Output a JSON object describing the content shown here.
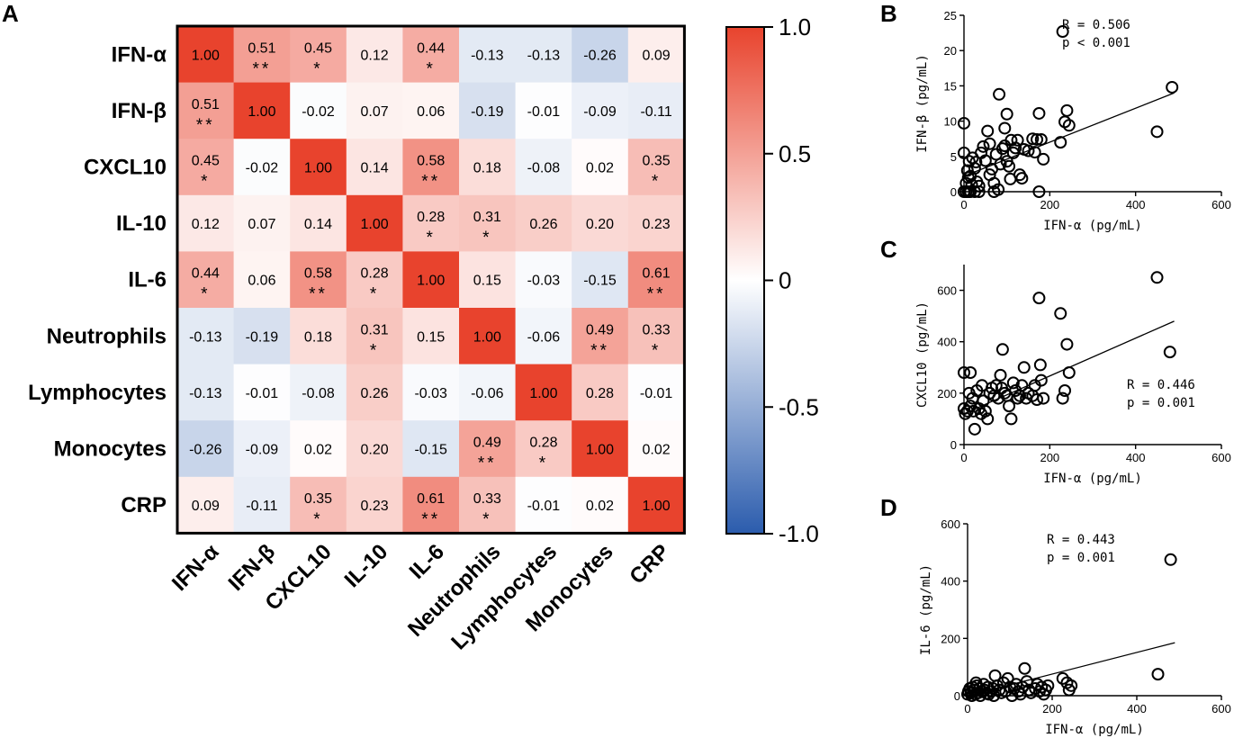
{
  "panels": {
    "a": "A",
    "b": "B",
    "c": "C",
    "d": "D"
  },
  "colorbar": {
    "ticks": [
      "1.0",
      "0.5",
      "0",
      "-0.5",
      "-1.0"
    ],
    "tick_values": [
      1.0,
      0.5,
      0,
      -0.5,
      -1.0
    ],
    "color_pos": "#e8432d",
    "color_neg": "#2b5cad",
    "color_mid": "#ffffff"
  },
  "chart_data": [
    {
      "type": "heatmap",
      "title": "",
      "labels": [
        "IFN-α",
        "IFN-β",
        "CXCL10",
        "IL-10",
        "IL-6",
        "Neutrophils",
        "Lymphocytes",
        "Monocytes",
        "CRP"
      ],
      "values": [
        [
          1.0,
          0.51,
          0.45,
          0.12,
          0.44,
          -0.13,
          -0.13,
          -0.26,
          0.09
        ],
        [
          0.51,
          1.0,
          -0.02,
          0.07,
          0.06,
          -0.19,
          -0.01,
          -0.09,
          -0.11
        ],
        [
          0.45,
          -0.02,
          1.0,
          0.14,
          0.58,
          0.18,
          -0.08,
          0.02,
          0.35
        ],
        [
          0.12,
          0.07,
          0.14,
          1.0,
          0.28,
          0.31,
          0.26,
          0.2,
          0.23
        ],
        [
          0.44,
          0.06,
          0.58,
          0.28,
          1.0,
          0.15,
          -0.03,
          -0.15,
          0.61
        ],
        [
          -0.13,
          -0.19,
          0.18,
          0.31,
          0.15,
          1.0,
          -0.06,
          0.49,
          0.33
        ],
        [
          -0.13,
          -0.01,
          -0.08,
          0.26,
          -0.03,
          -0.06,
          1.0,
          0.28,
          -0.01
        ],
        [
          -0.26,
          -0.09,
          0.02,
          0.2,
          -0.15,
          0.49,
          0.28,
          1.0,
          0.02
        ],
        [
          0.09,
          -0.11,
          0.35,
          0.23,
          0.61,
          0.33,
          -0.01,
          0.02,
          1.0
        ]
      ],
      "display": [
        [
          "1.00",
          "0.51",
          "0.45",
          "0.12",
          "0.44",
          "-0.13",
          "-0.13",
          "-0.26",
          "0.09"
        ],
        [
          "0.51",
          "1.00",
          "-0.02",
          "0.07",
          "0.06",
          "-0.19",
          "-0.01",
          "-0.09",
          "-0.11"
        ],
        [
          "0.45",
          "-0.02",
          "1.00",
          "0.14",
          "0.58",
          "0.18",
          "-0.08",
          "0.02",
          "0.35"
        ],
        [
          "0.12",
          "0.07",
          "0.14",
          "1.00",
          "0.28",
          "0.31",
          "0.26",
          "0.20",
          "0.23"
        ],
        [
          "0.44",
          "0.06",
          "0.58",
          "0.28",
          "1.00",
          "0.15",
          "-0.03",
          "-0.15",
          "0.61"
        ],
        [
          "-0.13",
          "-0.19",
          "0.18",
          "0.31",
          "0.15",
          "1.00",
          "-0.06",
          "0.49",
          "0.33"
        ],
        [
          "-0.13",
          "-0.01",
          "-0.08",
          "0.26",
          "-0.03",
          "-0.06",
          "1.00",
          "0.28",
          "-0.01"
        ],
        [
          "-0.26",
          "-0.09",
          "0.02",
          "0.20",
          "-0.15",
          "0.49",
          "0.28",
          "1.00",
          "0.02"
        ],
        [
          "0.09",
          "-0.11",
          "0.35",
          "0.23",
          "0.61",
          "0.33",
          "-0.01",
          "0.02",
          "1.00"
        ]
      ],
      "significance": [
        [
          "",
          "**",
          "*",
          "",
          "*",
          "",
          "",
          "",
          ""
        ],
        [
          "**",
          "",
          "",
          "",
          "",
          "",
          "",
          "",
          ""
        ],
        [
          "*",
          "",
          "",
          "",
          "**",
          "",
          "",
          "",
          "*"
        ],
        [
          "",
          "",
          "",
          "",
          "*",
          "*",
          "",
          "",
          ""
        ],
        [
          "*",
          "",
          "**",
          "*",
          "",
          "",
          "",
          "",
          "**"
        ],
        [
          "",
          "",
          "",
          "*",
          "",
          "",
          "",
          "**",
          "*"
        ],
        [
          "",
          "",
          "",
          "",
          "",
          "",
          "",
          "",
          ""
        ],
        [
          "",
          "",
          "",
          "",
          "",
          "**",
          "*",
          "",
          ""
        ],
        [
          "",
          "",
          "*",
          "",
          "**",
          "*",
          "",
          "",
          ""
        ]
      ],
      "clim": [
        -1.0,
        1.0
      ]
    },
    {
      "type": "scatter",
      "panel": "B",
      "xlabel": "IFN-α (pg/mL)",
      "ylabel": "IFN-β (pg/mL)",
      "xlim": [
        0,
        600
      ],
      "ylim": [
        0,
        25
      ],
      "xticks": [
        0,
        200,
        400,
        600
      ],
      "yticks": [
        0,
        5,
        10,
        15,
        20,
        25
      ],
      "stat_r": "R = 0.506",
      "stat_p": "p < 0.001",
      "fit": {
        "x": [
          0,
          490
        ],
        "y": [
          2.2,
          14.0
        ]
      },
      "points": [
        [
          0,
          0
        ],
        [
          5,
          0
        ],
        [
          10,
          0
        ],
        [
          15,
          0
        ],
        [
          25,
          0
        ],
        [
          35,
          0
        ],
        [
          70,
          0
        ],
        [
          175,
          0
        ],
        [
          0,
          9.7
        ],
        [
          0,
          5.5
        ],
        [
          5,
          1.2
        ],
        [
          8,
          3
        ],
        [
          10,
          2
        ],
        [
          12,
          4.3
        ],
        [
          15,
          2.2
        ],
        [
          18,
          1
        ],
        [
          20,
          4.8
        ],
        [
          25,
          3.3
        ],
        [
          28,
          4.2
        ],
        [
          30,
          1.4
        ],
        [
          35,
          0.8
        ],
        [
          40,
          5.5
        ],
        [
          45,
          6.4
        ],
        [
          50,
          4.4
        ],
        [
          55,
          8.6
        ],
        [
          60,
          6.8
        ],
        [
          60,
          2.4
        ],
        [
          65,
          3.2
        ],
        [
          70,
          1.2
        ],
        [
          75,
          5.3
        ],
        [
          80,
          0.3
        ],
        [
          82,
          13.8
        ],
        [
          85,
          3.9
        ],
        [
          90,
          6.1
        ],
        [
          95,
          9.0
        ],
        [
          95,
          6.5
        ],
        [
          100,
          11.0
        ],
        [
          100,
          4.3
        ],
        [
          105,
          3.6
        ],
        [
          108,
          1.8
        ],
        [
          110,
          7.3
        ],
        [
          115,
          5.5
        ],
        [
          120,
          6.2
        ],
        [
          125,
          7.3
        ],
        [
          130,
          2.4
        ],
        [
          135,
          1.9
        ],
        [
          140,
          6.0
        ],
        [
          150,
          5.8
        ],
        [
          160,
          7.5
        ],
        [
          165,
          5.6
        ],
        [
          170,
          7.4
        ],
        [
          175,
          11.1
        ],
        [
          180,
          7.4
        ],
        [
          185,
          4.6
        ],
        [
          225,
          7.0
        ],
        [
          230,
          22.7
        ],
        [
          235,
          9.9
        ],
        [
          240,
          11.5
        ],
        [
          245,
          9.4
        ],
        [
          450,
          8.5
        ],
        [
          485,
          14.8
        ]
      ]
    },
    {
      "type": "scatter",
      "panel": "C",
      "xlabel": "IFN-α (pg/mL)",
      "ylabel": "CXCL10 (pg/mL)",
      "xlim": [
        0,
        600
      ],
      "ylim": [
        0,
        700
      ],
      "xticks": [
        0,
        200,
        400,
        600
      ],
      "yticks": [
        0,
        200,
        400,
        600
      ],
      "stat_r": "R = 0.446",
      "stat_p": "p = 0.001",
      "fit": {
        "x": [
          0,
          490
        ],
        "y": [
          120,
          480
        ]
      },
      "points": [
        [
          0,
          280
        ],
        [
          0,
          140
        ],
        [
          3,
          120
        ],
        [
          8,
          130
        ],
        [
          12,
          200
        ],
        [
          15,
          280
        ],
        [
          15,
          150
        ],
        [
          20,
          180
        ],
        [
          22,
          130
        ],
        [
          25,
          60
        ],
        [
          30,
          210
        ],
        [
          35,
          140
        ],
        [
          40,
          120
        ],
        [
          42,
          230
        ],
        [
          45,
          170
        ],
        [
          50,
          130
        ],
        [
          55,
          100
        ],
        [
          60,
          200
        ],
        [
          65,
          220
        ],
        [
          70,
          190
        ],
        [
          75,
          230
        ],
        [
          80,
          180
        ],
        [
          85,
          270
        ],
        [
          88,
          220
        ],
        [
          90,
          370
        ],
        [
          95,
          200
        ],
        [
          100,
          190
        ],
        [
          105,
          150
        ],
        [
          110,
          100
        ],
        [
          115,
          240
        ],
        [
          120,
          210
        ],
        [
          125,
          180
        ],
        [
          130,
          190
        ],
        [
          135,
          230
        ],
        [
          140,
          300
        ],
        [
          145,
          180
        ],
        [
          150,
          200
        ],
        [
          160,
          190
        ],
        [
          165,
          230
        ],
        [
          170,
          175
        ],
        [
          175,
          570
        ],
        [
          178,
          310
        ],
        [
          180,
          250
        ],
        [
          185,
          180
        ],
        [
          225,
          510
        ],
        [
          230,
          180
        ],
        [
          235,
          210
        ],
        [
          240,
          390
        ],
        [
          245,
          280
        ],
        [
          450,
          650
        ],
        [
          480,
          360
        ]
      ]
    },
    {
      "type": "scatter",
      "panel": "D",
      "xlabel": "IFN-α (pg/mL)",
      "ylabel": "IL-6 (pg/mL)",
      "xlim": [
        0,
        600
      ],
      "ylim": [
        0,
        600
      ],
      "xticks": [
        0,
        200,
        400,
        600
      ],
      "yticks": [
        0,
        200,
        400,
        600
      ],
      "stat_r": "R = 0.443",
      "stat_p": "p = 0.001",
      "fit": {
        "x": [
          0,
          490
        ],
        "y": [
          0,
          185
        ]
      },
      "points": [
        [
          0,
          5
        ],
        [
          2,
          15
        ],
        [
          5,
          25
        ],
        [
          8,
          10
        ],
        [
          10,
          0
        ],
        [
          12,
          30
        ],
        [
          15,
          20
        ],
        [
          18,
          5
        ],
        [
          20,
          45
        ],
        [
          22,
          35
        ],
        [
          25,
          10
        ],
        [
          28,
          25
        ],
        [
          30,
          0
        ],
        [
          35,
          15
        ],
        [
          38,
          40
        ],
        [
          40,
          20
        ],
        [
          45,
          8
        ],
        [
          48,
          30
        ],
        [
          50,
          5
        ],
        [
          55,
          15
        ],
        [
          60,
          25
        ],
        [
          62,
          0
        ],
        [
          65,
          70
        ],
        [
          70,
          35
        ],
        [
          75,
          20
        ],
        [
          80,
          10
        ],
        [
          85,
          45
        ],
        [
          90,
          15
        ],
        [
          95,
          60
        ],
        [
          100,
          30
        ],
        [
          105,
          0
        ],
        [
          110,
          25
        ],
        [
          115,
          40
        ],
        [
          120,
          15
        ],
        [
          125,
          5
        ],
        [
          130,
          30
        ],
        [
          135,
          95
        ],
        [
          140,
          50
        ],
        [
          145,
          20
        ],
        [
          150,
          10
        ],
        [
          160,
          25
        ],
        [
          165,
          40
        ],
        [
          170,
          15
        ],
        [
          175,
          30
        ],
        [
          180,
          5
        ],
        [
          185,
          20
        ],
        [
          190,
          35
        ],
        [
          225,
          60
        ],
        [
          235,
          45
        ],
        [
          240,
          20
        ],
        [
          245,
          35
        ],
        [
          450,
          75
        ],
        [
          480,
          475
        ]
      ]
    }
  ]
}
